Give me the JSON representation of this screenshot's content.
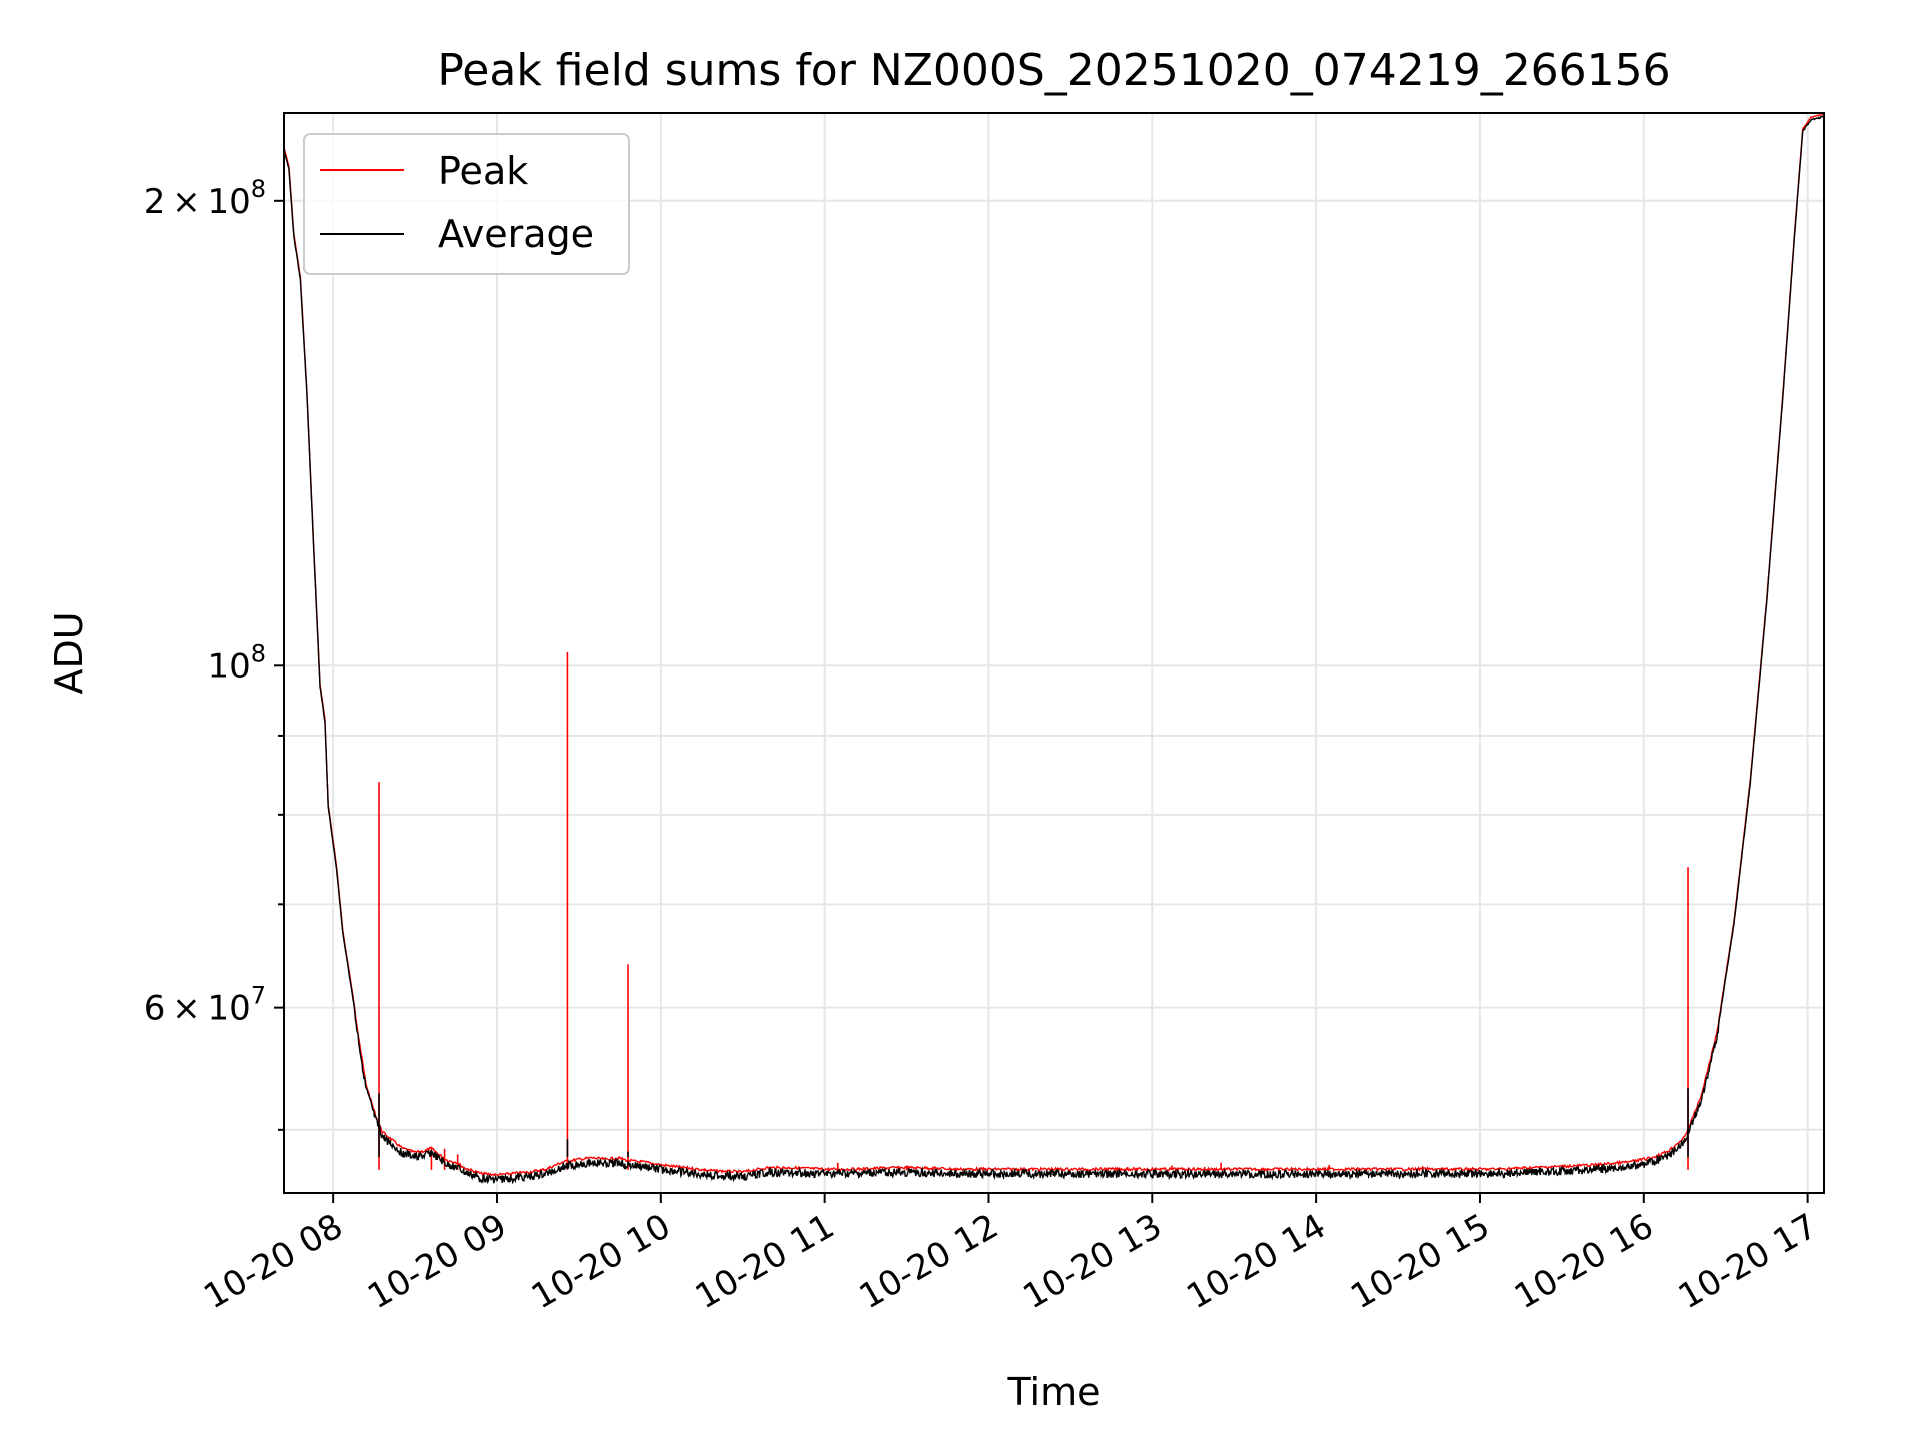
{
  "chart_data": {
    "type": "line",
    "title": "Peak field sums for NZ000S_20251020_074219_266156",
    "xlabel": "Time",
    "ylabel": "ADU",
    "yscale": "log",
    "grid": true,
    "legend_position": "upper-left",
    "xlim_hours": [
      7.7,
      17.1
    ],
    "ylim": [
      45500000,
      228000000
    ],
    "x_ticks": [
      {
        "hour": 8,
        "label": "10-20 08"
      },
      {
        "hour": 9,
        "label": "10-20 09"
      },
      {
        "hour": 10,
        "label": "10-20 10"
      },
      {
        "hour": 11,
        "label": "10-20 11"
      },
      {
        "hour": 12,
        "label": "10-20 12"
      },
      {
        "hour": 13,
        "label": "10-20 13"
      },
      {
        "hour": 14,
        "label": "10-20 14"
      },
      {
        "hour": 15,
        "label": "10-20 15"
      },
      {
        "hour": 16,
        "label": "10-20 16"
      },
      {
        "hour": 17,
        "label": "10-20 17"
      }
    ],
    "y_major_ticks": [
      {
        "value": 200000000,
        "mantissa": "2 × 10",
        "exp": "8"
      },
      {
        "value": 100000000,
        "mantissa": "10",
        "exp": "8"
      },
      {
        "value": 60000000,
        "mantissa": "6 × 10",
        "exp": "7"
      }
    ],
    "y_minor_ticks": [
      50000000,
      70000000,
      80000000,
      90000000
    ],
    "series": [
      {
        "name": "Peak",
        "color": "#ff0000",
        "spikes": [
          {
            "hour": 8.28,
            "value": 84000000
          },
          {
            "hour": 9.43,
            "value": 102000000
          },
          {
            "hour": 9.8,
            "value": 64000000
          },
          {
            "hour": 16.27,
            "value": 74000000
          },
          {
            "hour": 8.6,
            "value": 48700000
          },
          {
            "hour": 8.68,
            "value": 48600000
          },
          {
            "hour": 8.76,
            "value": 48200000
          },
          {
            "hour": 11.08,
            "value": 47600000
          },
          {
            "hour": 11.5,
            "value": 47400000
          },
          {
            "hour": 12.85,
            "value": 47300000
          },
          {
            "hour": 13.05,
            "value": 47250000
          },
          {
            "hour": 13.12,
            "value": 47400000
          },
          {
            "hour": 13.28,
            "value": 47250000
          },
          {
            "hour": 13.32,
            "value": 47300000
          },
          {
            "hour": 13.42,
            "value": 47600000
          },
          {
            "hour": 14.08,
            "value": 47450000
          },
          {
            "hour": 14.65,
            "value": 47350000
          },
          {
            "hour": 14.78,
            "value": 47250000
          },
          {
            "hour": 14.85,
            "value": 47250000
          },
          {
            "hour": 14.95,
            "value": 47200000
          },
          {
            "hour": 15.05,
            "value": 47200000
          }
        ]
      },
      {
        "name": "Average",
        "color": "#000000",
        "points": [
          [
            7.7,
            216000000
          ],
          [
            7.73,
            210000000
          ],
          [
            7.76,
            190000000
          ],
          [
            7.8,
            178000000
          ],
          [
            7.84,
            150000000
          ],
          [
            7.88,
            120000000
          ],
          [
            7.92,
            97000000
          ],
          [
            7.95,
            92000000
          ],
          [
            7.97,
            81000000
          ],
          [
            8.02,
            74000000
          ],
          [
            8.06,
            67000000
          ],
          [
            8.12,
            61000000
          ],
          [
            8.16,
            57000000
          ],
          [
            8.2,
            53500000
          ],
          [
            8.26,
            51000000
          ],
          [
            8.3,
            49800000
          ],
          [
            8.36,
            49200000
          ],
          [
            8.42,
            48600000
          ],
          [
            8.5,
            48300000
          ],
          [
            8.56,
            48400000
          ],
          [
            8.6,
            48600000
          ],
          [
            8.64,
            48200000
          ],
          [
            8.7,
            47700000
          ],
          [
            8.75,
            47600000
          ],
          [
            8.8,
            47200000
          ],
          [
            8.9,
            46800000
          ],
          [
            9.0,
            46700000
          ],
          [
            9.1,
            46800000
          ],
          [
            9.2,
            46900000
          ],
          [
            9.3,
            47100000
          ],
          [
            9.4,
            47600000
          ],
          [
            9.5,
            47800000
          ],
          [
            9.58,
            47900000
          ],
          [
            9.66,
            47800000
          ],
          [
            9.74,
            47900000
          ],
          [
            9.8,
            47700000
          ],
          [
            9.9,
            47600000
          ],
          [
            10.0,
            47400000
          ],
          [
            10.15,
            47200000
          ],
          [
            10.3,
            47000000
          ],
          [
            10.5,
            46900000
          ],
          [
            10.65,
            47200000
          ],
          [
            10.8,
            47200000
          ],
          [
            11.0,
            47100000
          ],
          [
            11.2,
            47100000
          ],
          [
            11.4,
            47200000
          ],
          [
            11.6,
            47200000
          ],
          [
            11.8,
            47100000
          ],
          [
            12.0,
            47100000
          ],
          [
            12.5,
            47100000
          ],
          [
            13.0,
            47100000
          ],
          [
            13.5,
            47100000
          ],
          [
            14.0,
            47100000
          ],
          [
            14.5,
            47100000
          ],
          [
            14.9,
            47100000
          ],
          [
            15.1,
            47100000
          ],
          [
            15.3,
            47200000
          ],
          [
            15.5,
            47300000
          ],
          [
            15.7,
            47400000
          ],
          [
            15.9,
            47600000
          ],
          [
            16.05,
            47900000
          ],
          [
            16.15,
            48400000
          ],
          [
            16.25,
            49400000
          ],
          [
            16.35,
            52500000
          ],
          [
            16.45,
            58000000
          ],
          [
            16.55,
            68000000
          ],
          [
            16.65,
            84000000
          ],
          [
            16.75,
            110000000
          ],
          [
            16.85,
            150000000
          ],
          [
            16.92,
            190000000
          ],
          [
            16.97,
            222000000
          ],
          [
            17.02,
            226000000
          ],
          [
            17.1,
            227000000
          ]
        ],
        "spikes": [
          {
            "hour": 8.28,
            "value": 52800000
          },
          {
            "hour": 9.43,
            "value": 49300000
          },
          {
            "hour": 9.8,
            "value": 48400000
          },
          {
            "hour": 16.27,
            "value": 53200000
          }
        ]
      }
    ]
  }
}
